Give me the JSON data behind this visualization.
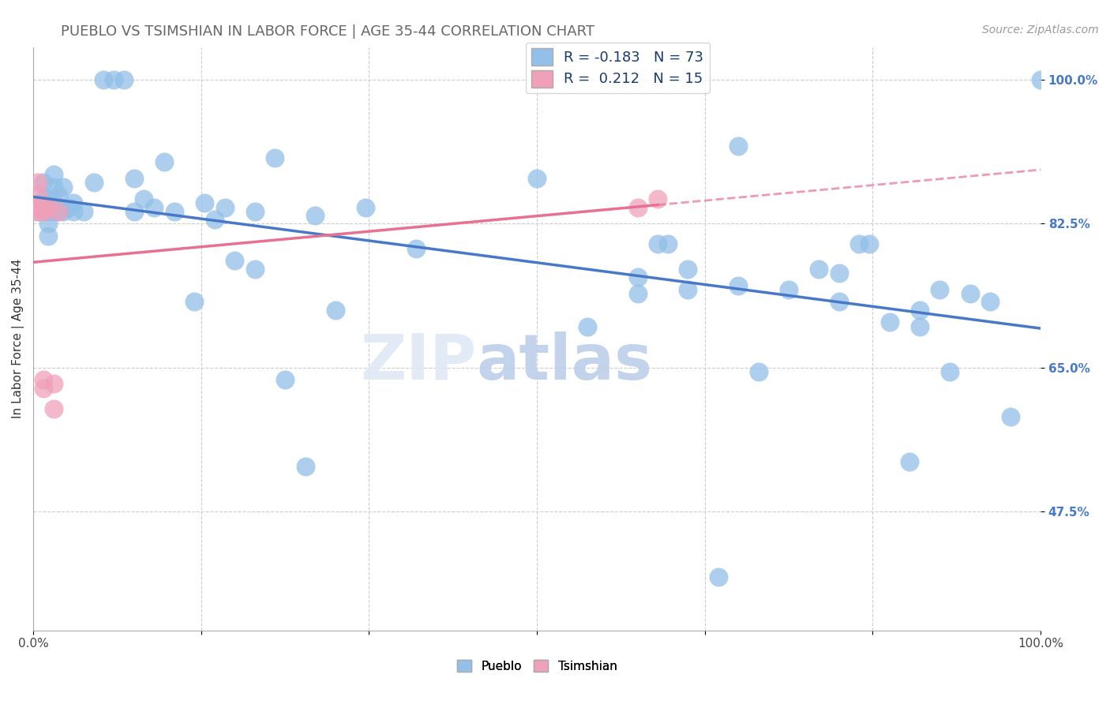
{
  "title": "PUEBLO VS TSIMSHIAN IN LABOR FORCE | AGE 35-44 CORRELATION CHART",
  "source_text": "Source: ZipAtlas.com",
  "ylabel": "In Labor Force | Age 35-44",
  "xlim": [
    0.0,
    1.0
  ],
  "ylim": [
    0.33,
    1.04
  ],
  "yticks": [
    0.475,
    0.65,
    0.825,
    1.0
  ],
  "ytick_labels": [
    "47.5%",
    "65.0%",
    "82.5%",
    "100.0%"
  ],
  "xticks": [
    0.0,
    0.167,
    0.333,
    0.5,
    0.667,
    0.833,
    1.0
  ],
  "xtick_labels": [
    "0.0%",
    "",
    "",
    "",
    "",
    "",
    "100.0%"
  ],
  "pueblo_R": -0.183,
  "pueblo_N": 73,
  "tsimshian_R": 0.212,
  "tsimshian_N": 15,
  "pueblo_color": "#92c0e8",
  "tsimshian_color": "#f0a0b8",
  "pueblo_line_color": "#4878c8",
  "tsimshian_line_color": "#e87090",
  "background_color": "#ffffff",
  "grid_color": "#cccccc",
  "pueblo_x": [
    0.005,
    0.01,
    0.01,
    0.015,
    0.015,
    0.015,
    0.015,
    0.015,
    0.02,
    0.02,
    0.02,
    0.02,
    0.025,
    0.025,
    0.03,
    0.03,
    0.03,
    0.035,
    0.04,
    0.04,
    0.05,
    0.06,
    0.07,
    0.08,
    0.09,
    0.1,
    0.1,
    0.11,
    0.12,
    0.13,
    0.14,
    0.16,
    0.17,
    0.18,
    0.19,
    0.2,
    0.22,
    0.22,
    0.24,
    0.25,
    0.27,
    0.28,
    0.3,
    0.33,
    0.38,
    0.5,
    0.55,
    0.6,
    0.6,
    0.62,
    0.63,
    0.65,
    0.65,
    0.68,
    0.7,
    0.7,
    0.72,
    0.75,
    0.78,
    0.8,
    0.8,
    0.82,
    0.83,
    0.85,
    0.87,
    0.88,
    0.88,
    0.9,
    0.91,
    0.93,
    0.95,
    0.97,
    1.0
  ],
  "pueblo_y": [
    0.84,
    0.875,
    0.855,
    0.855,
    0.84,
    0.84,
    0.825,
    0.81,
    0.84,
    0.85,
    0.87,
    0.885,
    0.84,
    0.86,
    0.845,
    0.87,
    0.84,
    0.845,
    0.85,
    0.84,
    0.84,
    0.875,
    1.0,
    1.0,
    1.0,
    0.88,
    0.84,
    0.855,
    0.845,
    0.9,
    0.84,
    0.73,
    0.85,
    0.83,
    0.845,
    0.78,
    0.77,
    0.84,
    0.905,
    0.635,
    0.53,
    0.835,
    0.72,
    0.845,
    0.795,
    0.88,
    0.7,
    0.74,
    0.76,
    0.8,
    0.8,
    0.77,
    0.745,
    0.395,
    0.92,
    0.75,
    0.645,
    0.745,
    0.77,
    0.73,
    0.765,
    0.8,
    0.8,
    0.705,
    0.535,
    0.72,
    0.7,
    0.745,
    0.645,
    0.74,
    0.73,
    0.59,
    1.0
  ],
  "tsimshian_x": [
    0.005,
    0.005,
    0.005,
    0.005,
    0.005,
    0.01,
    0.01,
    0.01,
    0.01,
    0.015,
    0.02,
    0.02,
    0.025,
    0.6,
    0.62
  ],
  "tsimshian_y": [
    0.84,
    0.845,
    0.845,
    0.86,
    0.875,
    0.845,
    0.84,
    0.635,
    0.625,
    0.845,
    0.6,
    0.63,
    0.84,
    0.845,
    0.855
  ],
  "watermark_zip": "ZIP",
  "watermark_atlas": "atlas",
  "title_fontsize": 13,
  "axis_label_fontsize": 11,
  "tick_fontsize": 11,
  "legend_fontsize": 13,
  "source_fontsize": 10
}
